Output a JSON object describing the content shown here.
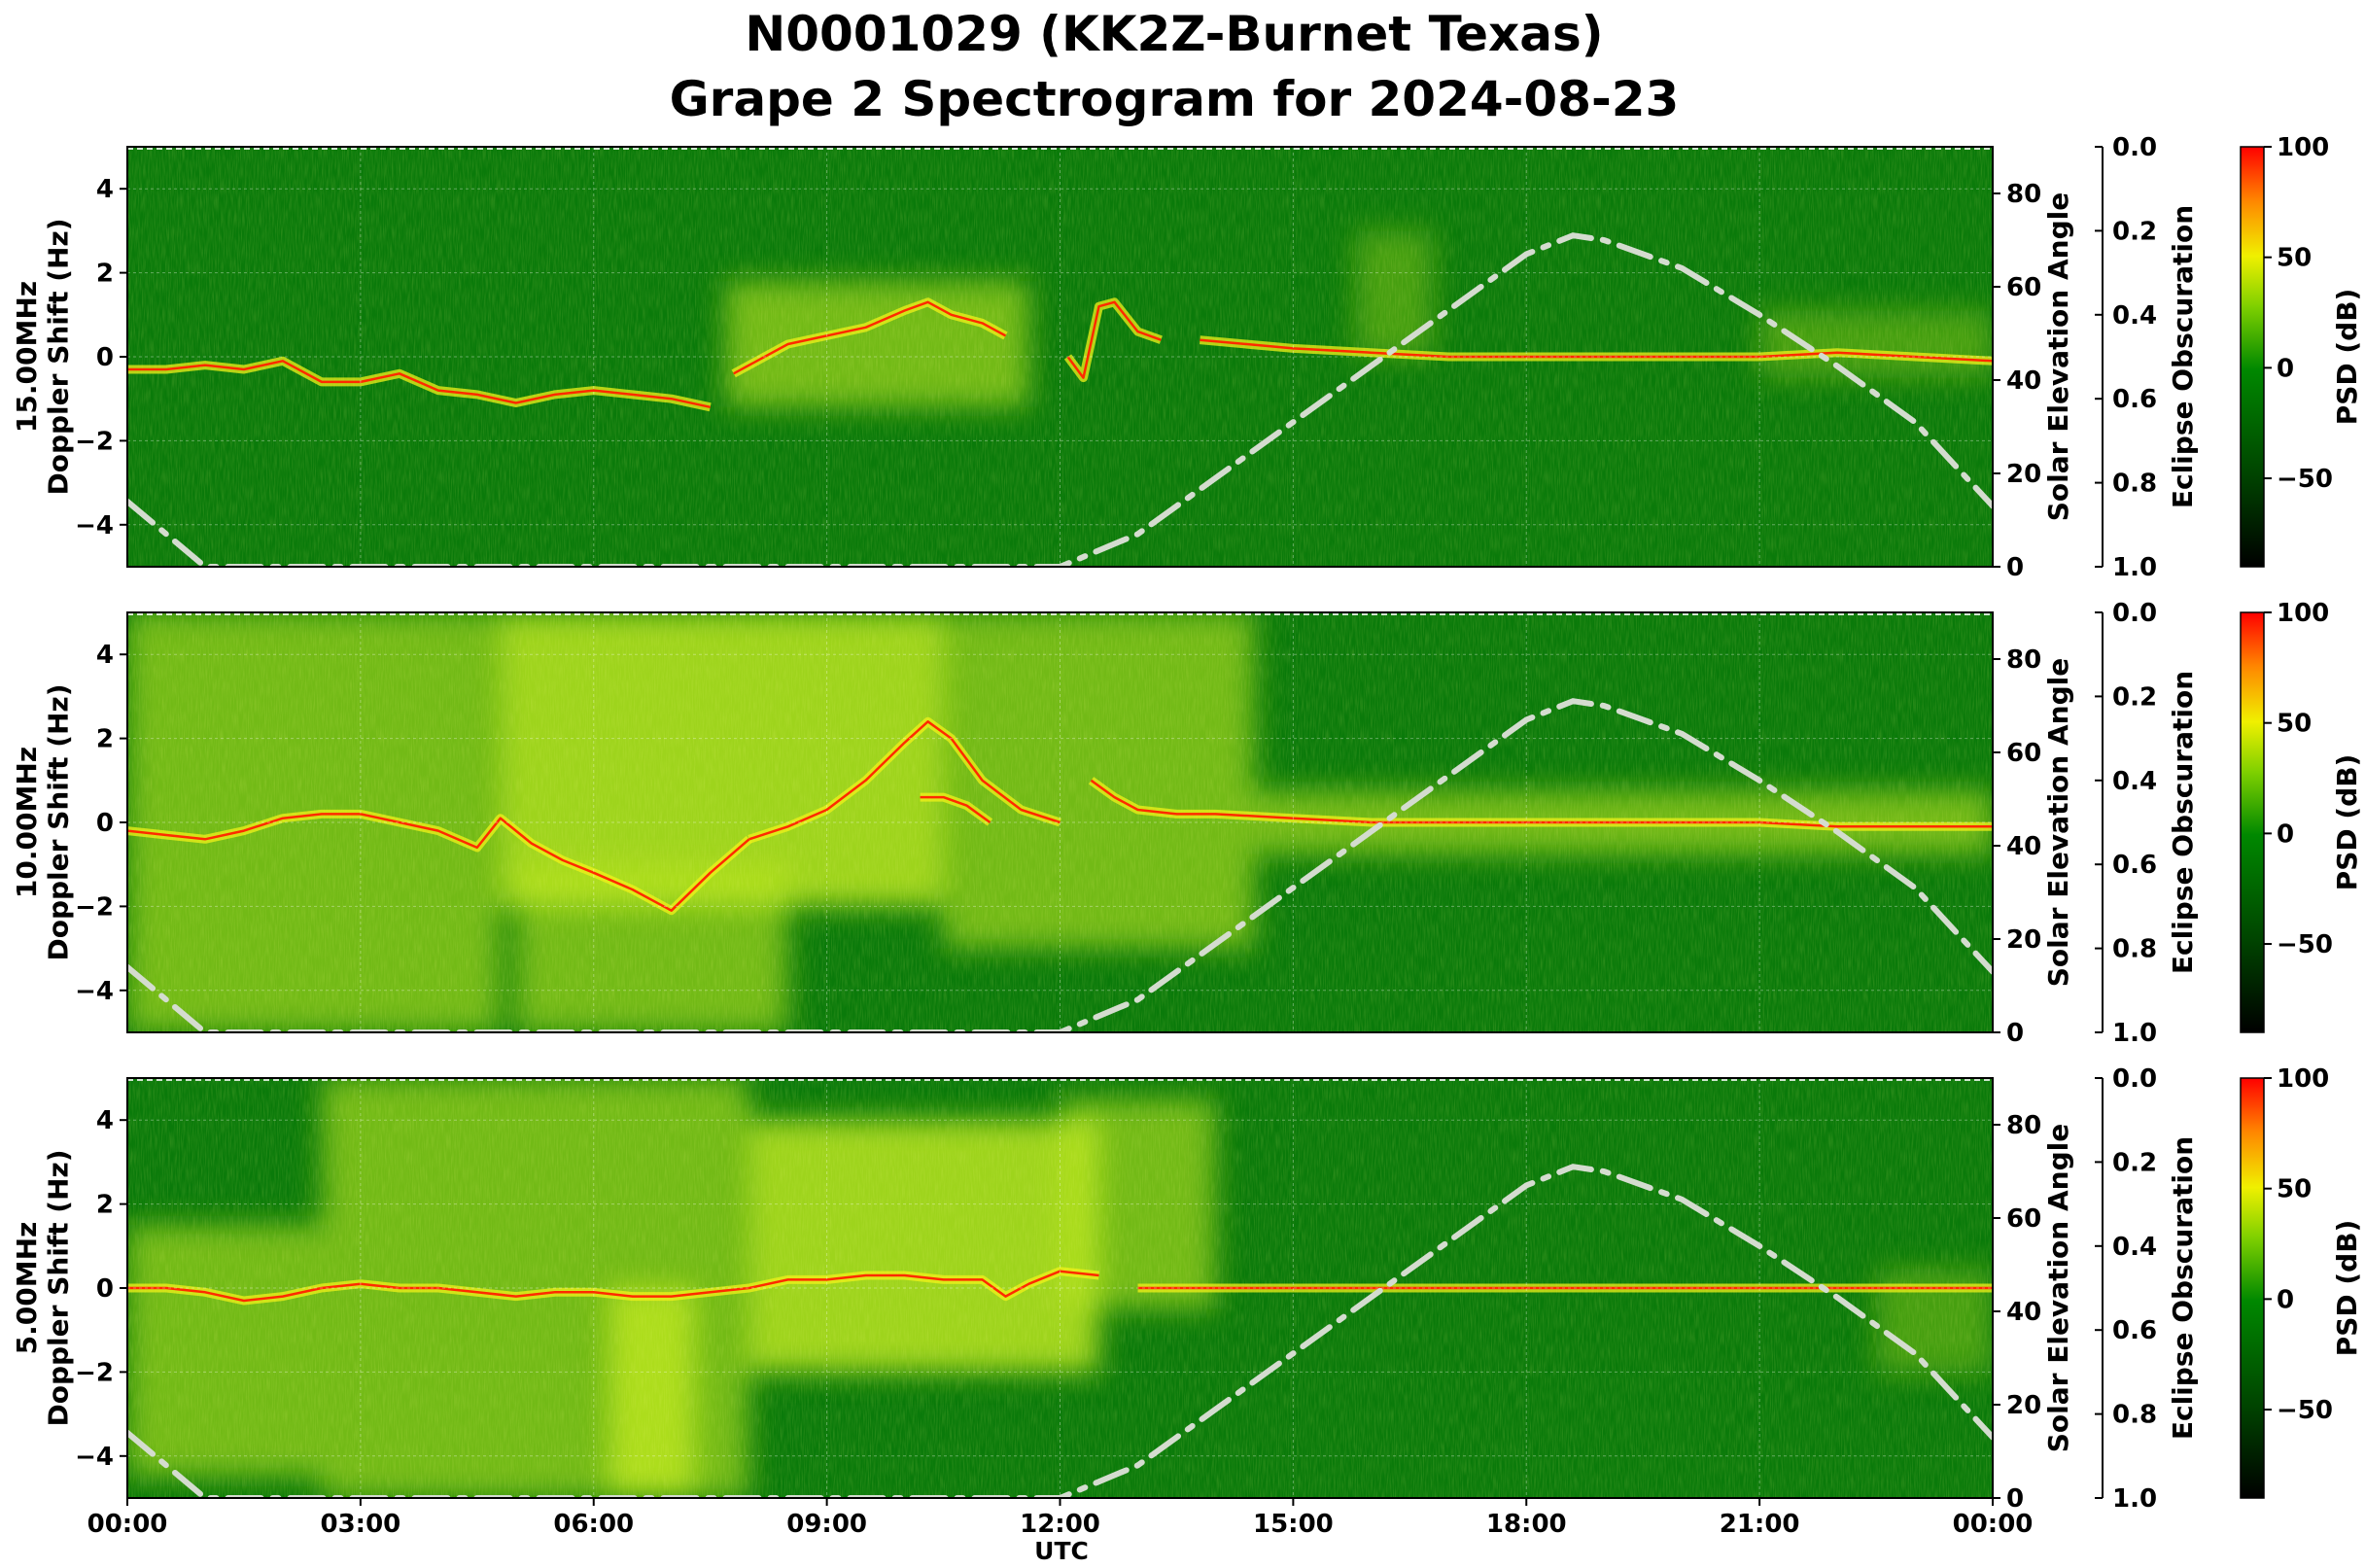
{
  "chart_data": {
    "type": "heatmap",
    "title": "N0001029 (KK2Z-Burnet Texas)",
    "subtitle": "Grape 2 Spectrogram for 2024-08-23",
    "xlabel": "UTC",
    "x_ticks": [
      "00:00",
      "03:00",
      "06:00",
      "09:00",
      "12:00",
      "15:00",
      "18:00",
      "21:00",
      "00:00"
    ],
    "x_range_hours": [
      0,
      24
    ],
    "y_range_hz": [
      -5,
      5
    ],
    "y_ticks": [
      "4",
      "2",
      "0",
      "−2",
      "−4"
    ],
    "y_tick_values": [
      4,
      2,
      0,
      -2,
      -4
    ],
    "ylabel_line2": "Doppler Shift (Hz)",
    "right_axis_label": "Solar Elevation Angle",
    "right_axis_range_deg": [
      0,
      90
    ],
    "right_axis_ticks": [
      "80",
      "60",
      "40",
      "20",
      "0"
    ],
    "right_axis_tick_values": [
      80,
      60,
      40,
      20,
      0
    ],
    "obscuration_label": "Eclipse Obscuration",
    "obscuration_range": [
      0,
      1
    ],
    "obscuration_ticks": [
      "0.0",
      "0.2",
      "0.4",
      "0.6",
      "0.8",
      "1.0"
    ],
    "obscuration_tick_values": [
      0,
      0.2,
      0.4,
      0.6,
      0.8,
      1.0
    ],
    "colorbar_label": "PSD (dB)",
    "colorbar_range_db": [
      -90,
      100
    ],
    "colorbar_ticks": [
      "100",
      "50",
      "0",
      "−50"
    ],
    "colorbar_tick_values": [
      100,
      50,
      0,
      -50
    ],
    "grid": true,
    "colors": {
      "background": "#0a7a0a",
      "signal": "#f2f21a",
      "peak": "#ff2a00",
      "solar_curve": "#d4dccf"
    },
    "solar_elevation": {
      "x_hours": [
        0,
        1,
        2,
        3,
        4,
        5,
        6,
        7,
        8,
        9,
        10,
        11,
        12,
        13,
        14,
        15,
        16,
        17,
        18,
        18.6,
        19,
        20,
        21,
        22,
        23,
        24
      ],
      "y_deg": [
        14,
        0,
        0,
        0,
        0,
        0,
        0,
        0,
        0,
        0,
        0,
        0,
        0,
        7,
        19,
        31,
        43,
        55,
        67,
        71,
        70,
        64,
        54,
        43,
        31,
        13
      ]
    },
    "panels": [
      {
        "ylabel_line1": "15.00MHz",
        "traces": [
          {
            "x_hours": [
              0,
              0.5,
              1,
              1.5,
              2,
              2.5,
              3,
              3.5,
              4,
              4.5,
              5,
              5.5,
              6,
              6.5,
              7,
              7.5
            ],
            "y_hz": [
              -0.3,
              -0.3,
              -0.2,
              -0.3,
              -0.1,
              -0.6,
              -0.6,
              -0.4,
              -0.8,
              -0.9,
              -1.1,
              -0.9,
              -0.8,
              -0.9,
              -1.0,
              -1.2
            ]
          },
          {
            "x_hours": [
              7.8,
              8.5,
              9,
              9.5,
              10,
              10.3,
              10.6,
              11,
              11.3
            ],
            "y_hz": [
              -0.4,
              0.3,
              0.5,
              0.7,
              1.1,
              1.3,
              1.0,
              0.8,
              0.5
            ]
          },
          {
            "x_hours": [
              12.1,
              12.3,
              12.5,
              12.7,
              13.0,
              13.3
            ],
            "y_hz": [
              0.0,
              -0.5,
              1.2,
              1.3,
              0.6,
              0.4
            ]
          },
          {
            "x_hours": [
              13.8,
              15,
              16,
              17,
              18,
              19,
              20,
              21,
              22,
              23,
              24
            ],
            "y_hz": [
              0.4,
              0.2,
              0.1,
              0.0,
              0.0,
              0.0,
              0.0,
              0.0,
              0.1,
              0.0,
              -0.1
            ]
          }
        ],
        "bright_regions": [
          {
            "x0_hours": 7.7,
            "x1_hours": 11.6,
            "y_center_hz": 0.3,
            "y_span_hz": 3.0,
            "level": "moderate"
          },
          {
            "x0_hours": 15.8,
            "x1_hours": 16.8,
            "y_center_hz": 1.5,
            "y_span_hz": 3.0,
            "level": "weak"
          },
          {
            "x0_hours": 21.0,
            "x1_hours": 24.0,
            "y_center_hz": 0.3,
            "y_span_hz": 1.6,
            "level": "weak"
          }
        ]
      },
      {
        "ylabel_line1": "10.00MHz",
        "traces": [
          {
            "x_hours": [
              0,
              0.5,
              1,
              1.5,
              2,
              2.5,
              3,
              3.5,
              4,
              4.5,
              4.8,
              5.2,
              5.6,
              6,
              6.5,
              7,
              7.5,
              8
            ],
            "y_hz": [
              -0.2,
              -0.3,
              -0.4,
              -0.2,
              0.1,
              0.2,
              0.2,
              0.0,
              -0.2,
              -0.6,
              0.1,
              -0.5,
              -0.9,
              -1.2,
              -1.6,
              -2.1,
              -1.2,
              -0.4
            ]
          },
          {
            "x_hours": [
              8,
              8.5,
              9,
              9.5,
              10,
              10.3,
              10.6,
              11,
              11.5,
              12
            ],
            "y_hz": [
              -0.4,
              -0.1,
              0.3,
              1.0,
              1.9,
              2.4,
              2.0,
              1.0,
              0.3,
              0.0
            ]
          },
          {
            "x_hours": [
              10.2,
              10.5,
              10.8,
              11.1
            ],
            "y_hz": [
              0.6,
              0.6,
              0.4,
              0.0
            ]
          },
          {
            "x_hours": [
              12.4,
              12.7,
              13,
              13.5,
              14,
              15,
              16,
              17,
              18,
              19,
              20,
              21,
              22,
              23,
              24
            ],
            "y_hz": [
              1.0,
              0.6,
              0.3,
              0.2,
              0.2,
              0.1,
              0.0,
              0.0,
              0.0,
              0.0,
              0.0,
              0.0,
              -0.1,
              -0.1,
              -0.1
            ]
          }
        ],
        "bright_regions": [
          {
            "x0_hours": 0.0,
            "x1_hours": 4.8,
            "y_center_hz": 0.0,
            "y_span_hz": 10.0,
            "level": "moderate"
          },
          {
            "x0_hours": 4.8,
            "x1_hours": 10.5,
            "y_center_hz": 1.5,
            "y_span_hz": 7.0,
            "level": "strong"
          },
          {
            "x0_hours": 5.0,
            "x1_hours": 8.5,
            "y_center_hz": -3.0,
            "y_span_hz": 4.0,
            "level": "moderate"
          },
          {
            "x0_hours": 10.5,
            "x1_hours": 14.5,
            "y_center_hz": 1.0,
            "y_span_hz": 8.0,
            "level": "moderate"
          },
          {
            "x0_hours": 14.5,
            "x1_hours": 24.0,
            "y_center_hz": 0.0,
            "y_span_hz": 1.5,
            "level": "moderate"
          }
        ]
      },
      {
        "ylabel_line1": "5.00MHz",
        "traces": [
          {
            "x_hours": [
              0,
              0.5,
              1,
              1.5,
              2,
              2.5,
              3,
              3.5,
              4,
              4.5,
              5,
              5.5,
              6,
              6.5,
              7,
              7.5,
              8,
              8.5,
              9,
              9.5,
              10,
              10.5,
              11,
              11.3,
              11.6,
              12,
              12.5
            ],
            "y_hz": [
              0.0,
              0.0,
              -0.1,
              -0.3,
              -0.2,
              0.0,
              0.1,
              0.0,
              0.0,
              -0.1,
              -0.2,
              -0.1,
              -0.1,
              -0.2,
              -0.2,
              -0.1,
              0.0,
              0.2,
              0.2,
              0.3,
              0.3,
              0.2,
              0.2,
              -0.2,
              0.1,
              0.4,
              0.3
            ]
          },
          {
            "x_hours": [
              13.0,
              14,
              15,
              16,
              17,
              18,
              19,
              20,
              21,
              22,
              23,
              24
            ],
            "y_hz": [
              0.0,
              0.0,
              0.0,
              0.0,
              0.0,
              0.0,
              0.0,
              0.0,
              0.0,
              0.0,
              0.0,
              0.0
            ]
          }
        ],
        "bright_regions": [
          {
            "x0_hours": 0.0,
            "x1_hours": 2.5,
            "y_center_hz": -1.5,
            "y_span_hz": 6.0,
            "level": "moderate"
          },
          {
            "x0_hours": 2.5,
            "x1_hours": 8.0,
            "y_center_hz": 0.0,
            "y_span_hz": 10.0,
            "level": "moderate"
          },
          {
            "x0_hours": 6.2,
            "x1_hours": 7.3,
            "y_center_hz": -2.5,
            "y_span_hz": 5.0,
            "level": "strong"
          },
          {
            "x0_hours": 8.0,
            "x1_hours": 12.5,
            "y_center_hz": 1.0,
            "y_span_hz": 6.0,
            "level": "strong"
          },
          {
            "x0_hours": 12.0,
            "x1_hours": 14.0,
            "y_center_hz": 2.0,
            "y_span_hz": 5.0,
            "level": "moderate"
          },
          {
            "x0_hours": 22.5,
            "x1_hours": 24.0,
            "y_center_hz": -0.8,
            "y_span_hz": 2.5,
            "level": "weak"
          }
        ]
      }
    ]
  }
}
